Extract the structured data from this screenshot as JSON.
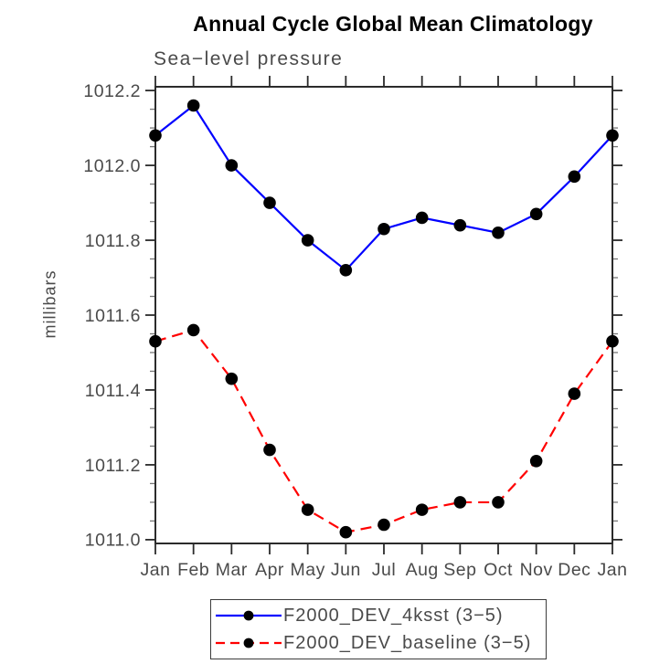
{
  "chart_data": {
    "type": "line",
    "title": "Annual Cycle Global Mean Climatology",
    "subtitle": "Sea−level pressure",
    "ylabel": "millibars",
    "xlabel": "",
    "categories": [
      "Jan",
      "Feb",
      "Mar",
      "Apr",
      "May",
      "Jun",
      "Jul",
      "Aug",
      "Sep",
      "Oct",
      "Nov",
      "Dec",
      "Jan"
    ],
    "ylim": [
      1010.99,
      1012.21
    ],
    "yticks_major": [
      1011.0,
      1011.2,
      1011.4,
      1011.6,
      1011.8,
      1012.0,
      1012.2
    ],
    "ytick_minor_step": 0.05,
    "grid": "off",
    "legend_position": "bottom-center",
    "series": [
      {
        "name": "F2000_DEV_4ksst (3−5)",
        "color": "#0000ff",
        "line_style": "solid",
        "marker": "filled-circle",
        "marker_color": "#000000",
        "values": [
          1012.08,
          1012.16,
          1012.0,
          1011.9,
          1011.8,
          1011.72,
          1011.83,
          1011.86,
          1011.84,
          1011.82,
          1011.87,
          1011.97,
          1012.08
        ]
      },
      {
        "name": "F2000_DEV_baseline (3−5)",
        "color": "#ff0000",
        "line_style": "dashed",
        "marker": "filled-circle",
        "marker_color": "#000000",
        "values": [
          1011.53,
          1011.56,
          1011.43,
          1011.24,
          1011.08,
          1011.02,
          1011.04,
          1011.08,
          1011.1,
          1011.1,
          1011.21,
          1011.39,
          1011.53
        ]
      }
    ],
    "colors": {
      "axis": "#2b2b2b",
      "minor_tick": "#777777",
      "tick_label": "#4a4a4a",
      "title": "#000000",
      "background": "#ffffff"
    }
  }
}
